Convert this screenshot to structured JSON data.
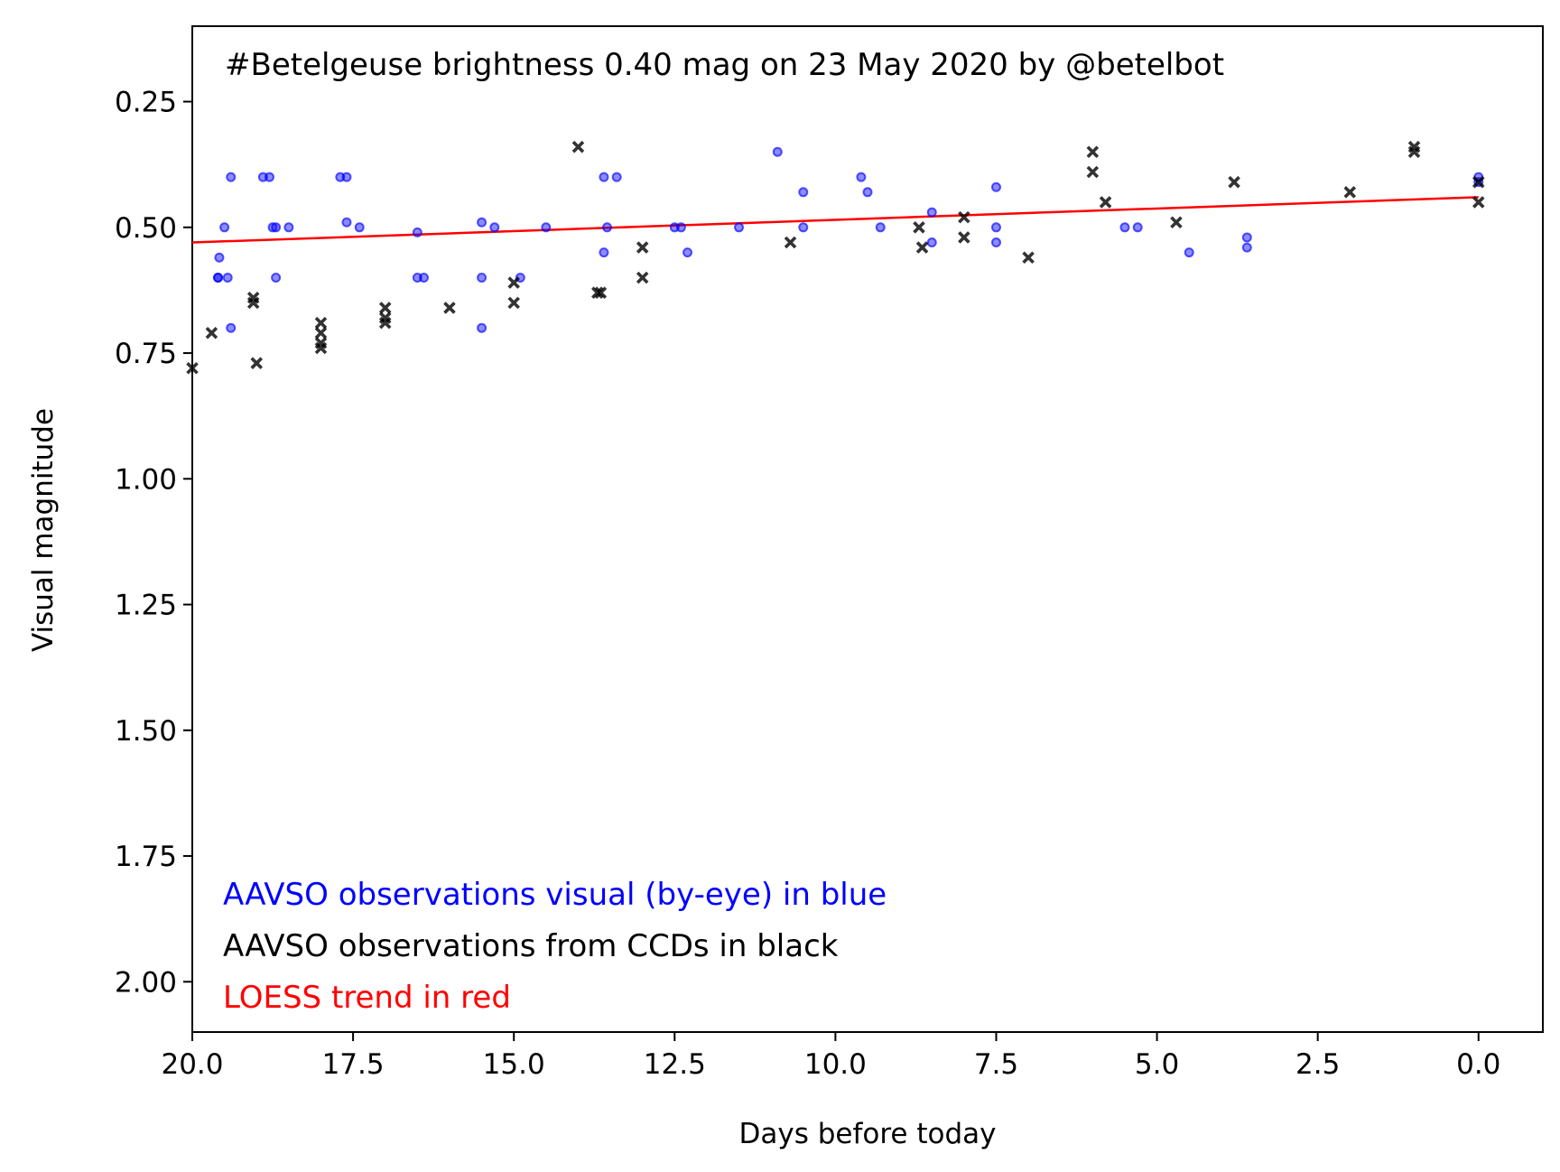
{
  "chart_data": {
    "type": "scatter",
    "title": "#Betelgeuse brightness 0.40 mag on 23 May 2020 by @betelbot",
    "xlabel": "Days before today",
    "ylabel": "Visual magnitude",
    "xlim": [
      20.0,
      -1.0
    ],
    "ylim": [
      2.1,
      0.1
    ],
    "y_inverted": true,
    "grid": false,
    "xticks": [
      20.0,
      17.5,
      15.0,
      12.5,
      10.0,
      7.5,
      5.0,
      2.5,
      0.0
    ],
    "xtick_labels": [
      "20.0",
      "17.5",
      "15.0",
      "12.5",
      "10.0",
      "7.5",
      "5.0",
      "2.5",
      "0.0"
    ],
    "yticks": [
      0.25,
      0.5,
      0.75,
      1.0,
      1.25,
      1.5,
      1.75,
      2.0
    ],
    "ytick_labels": [
      "0.25",
      "0.50",
      "0.75",
      "1.00",
      "1.25",
      "1.50",
      "1.75",
      "2.00"
    ],
    "annotations": [
      {
        "text": "AAVSO observations visual (by-eye) in blue",
        "color": "#0000ff"
      },
      {
        "text": "AAVSO observations from CCDs in black",
        "color": "#000000"
      },
      {
        "text": "LOESS trend in red",
        "color": "#ff0000"
      }
    ],
    "series": [
      {
        "marker": "circle",
        "color": "#0000ff",
        "points": [
          [
            19.6,
            0.6
          ],
          [
            19.6,
            0.6
          ],
          [
            19.58,
            0.56
          ],
          [
            19.5,
            0.5
          ],
          [
            19.45,
            0.6
          ],
          [
            19.4,
            0.4
          ],
          [
            19.4,
            0.7
          ],
          [
            18.9,
            0.4
          ],
          [
            18.8,
            0.4
          ],
          [
            18.75,
            0.5
          ],
          [
            18.7,
            0.5
          ],
          [
            18.7,
            0.6
          ],
          [
            18.5,
            0.5
          ],
          [
            17.7,
            0.4
          ],
          [
            17.6,
            0.4
          ],
          [
            17.6,
            0.49
          ],
          [
            17.4,
            0.5
          ],
          [
            16.5,
            0.51
          ],
          [
            16.5,
            0.6
          ],
          [
            16.4,
            0.6
          ],
          [
            15.5,
            0.49
          ],
          [
            15.5,
            0.6
          ],
          [
            15.5,
            0.7
          ],
          [
            15.3,
            0.5
          ],
          [
            14.9,
            0.6
          ],
          [
            14.5,
            0.5
          ],
          [
            13.6,
            0.4
          ],
          [
            13.6,
            0.55
          ],
          [
            13.55,
            0.5
          ],
          [
            13.4,
            0.4
          ],
          [
            12.5,
            0.5
          ],
          [
            12.4,
            0.5
          ],
          [
            12.3,
            0.55
          ],
          [
            11.5,
            0.5
          ],
          [
            10.9,
            0.35
          ],
          [
            10.5,
            0.43
          ],
          [
            10.5,
            0.5
          ],
          [
            9.6,
            0.4
          ],
          [
            9.5,
            0.43
          ],
          [
            9.3,
            0.5
          ],
          [
            8.5,
            0.47
          ],
          [
            8.5,
            0.53
          ],
          [
            7.5,
            0.42
          ],
          [
            7.5,
            0.5
          ],
          [
            7.5,
            0.53
          ],
          [
            5.5,
            0.5
          ],
          [
            5.3,
            0.5
          ],
          [
            4.5,
            0.55
          ],
          [
            3.6,
            0.52
          ],
          [
            3.6,
            0.54
          ],
          [
            0.0,
            0.4
          ],
          [
            0.0,
            0.41
          ]
        ]
      },
      {
        "marker": "x",
        "color": "#000000",
        "points": [
          [
            20.0,
            0.78
          ],
          [
            19.7,
            0.71
          ],
          [
            19.05,
            0.65
          ],
          [
            19.05,
            0.64
          ],
          [
            19.0,
            0.77
          ],
          [
            18.0,
            0.69
          ],
          [
            18.0,
            0.71
          ],
          [
            18.0,
            0.73
          ],
          [
            18.0,
            0.74
          ],
          [
            17.0,
            0.66
          ],
          [
            17.0,
            0.68
          ],
          [
            17.0,
            0.69
          ],
          [
            16.0,
            0.66
          ],
          [
            15.0,
            0.61
          ],
          [
            15.0,
            0.65
          ],
          [
            14.0,
            0.34
          ],
          [
            13.7,
            0.63
          ],
          [
            13.65,
            0.63
          ],
          [
            13.0,
            0.54
          ],
          [
            13.0,
            0.6
          ],
          [
            10.7,
            0.53
          ],
          [
            8.7,
            0.5
          ],
          [
            8.65,
            0.54
          ],
          [
            8.0,
            0.48
          ],
          [
            8.0,
            0.52
          ],
          [
            7.0,
            0.56
          ],
          [
            6.0,
            0.35
          ],
          [
            6.0,
            0.39
          ],
          [
            5.8,
            0.45
          ],
          [
            4.7,
            0.49
          ],
          [
            3.8,
            0.41
          ],
          [
            2.0,
            0.43
          ],
          [
            1.0,
            0.34
          ],
          [
            1.0,
            0.35
          ],
          [
            0.0,
            0.41
          ],
          [
            0.0,
            0.45
          ]
        ]
      }
    ],
    "trend_line": {
      "color": "#ff0000",
      "points": [
        [
          20.0,
          0.53
        ],
        [
          0.0,
          0.44
        ]
      ]
    }
  }
}
